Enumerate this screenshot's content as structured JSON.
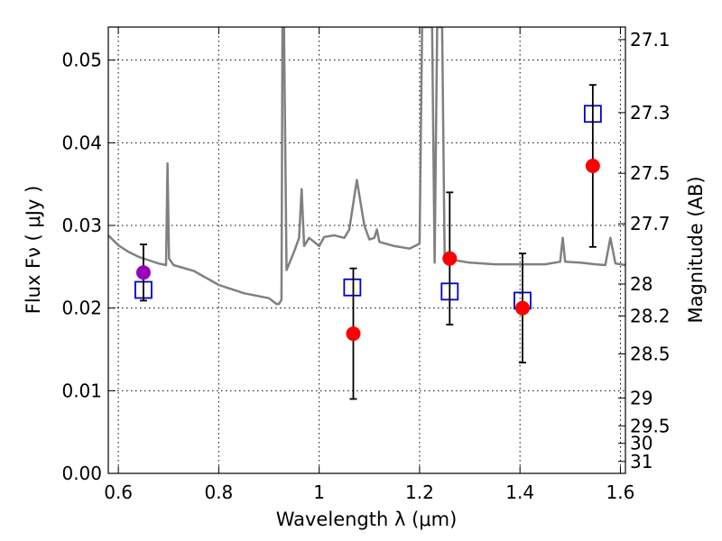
{
  "chart_data": {
    "type": "scatter",
    "xlabel": "Wavelength  λ (μm)",
    "ylabel": "Flux  Fν  ( μJy )",
    "ylabel_right": "Magnitude (AB)",
    "xlim": [
      0.58,
      1.61
    ],
    "ylim": [
      0.0,
      0.054
    ],
    "x_ticks": [
      0.6,
      0.8,
      1.0,
      1.2,
      1.4,
      1.6
    ],
    "x_tick_labels": [
      "0.6",
      "0.8",
      "1",
      "1.2",
      "1.4",
      "1.6"
    ],
    "y_ticks": [
      0.0,
      0.01,
      0.02,
      0.03,
      0.04,
      0.05
    ],
    "y_tick_labels": [
      "0.00",
      "0.01",
      "0.02",
      "0.03",
      "0.04",
      "0.05"
    ],
    "mag_ticks": [
      27.1,
      27.3,
      27.5,
      27.7,
      28,
      28.2,
      28.5,
      29,
      29.5,
      30,
      31
    ],
    "mag_tick_labels": [
      "27.1",
      "27.3",
      "27.5",
      "27.7",
      "28",
      "28.2",
      "28.5",
      "29",
      "29.5",
      "30",
      "31"
    ],
    "grid": true,
    "series": [
      {
        "marker": "line",
        "color": "#808080",
        "points": [
          [
            0.58,
            0.0288
          ],
          [
            0.6,
            0.0276
          ],
          [
            0.62,
            0.0268
          ],
          [
            0.64,
            0.0262
          ],
          [
            0.66,
            0.0258
          ],
          [
            0.68,
            0.0254
          ],
          [
            0.695,
            0.0252
          ],
          [
            0.698,
            0.0375
          ],
          [
            0.701,
            0.026
          ],
          [
            0.71,
            0.0252
          ],
          [
            0.75,
            0.0245
          ],
          [
            0.8,
            0.0228
          ],
          [
            0.85,
            0.0218
          ],
          [
            0.9,
            0.0212
          ],
          [
            0.915,
            0.0205
          ],
          [
            0.92,
            0.0205
          ],
          [
            0.925,
            0.021
          ],
          [
            0.927,
            0.054
          ],
          [
            0.93,
            0.054
          ],
          [
            0.935,
            0.0246
          ],
          [
            0.95,
            0.0268
          ],
          [
            0.96,
            0.0285
          ],
          [
            0.965,
            0.0344
          ],
          [
            0.97,
            0.0275
          ],
          [
            0.98,
            0.0285
          ],
          [
            0.99,
            0.028
          ],
          [
            1.0,
            0.0275
          ],
          [
            1.01,
            0.0286
          ],
          [
            1.03,
            0.0288
          ],
          [
            1.05,
            0.0285
          ],
          [
            1.06,
            0.0295
          ],
          [
            1.075,
            0.0355
          ],
          [
            1.09,
            0.03
          ],
          [
            1.1,
            0.0283
          ],
          [
            1.11,
            0.0285
          ],
          [
            1.115,
            0.0295
          ],
          [
            1.12,
            0.028
          ],
          [
            1.15,
            0.0275
          ],
          [
            1.18,
            0.0272
          ],
          [
            1.2,
            0.0278
          ],
          [
            1.205,
            0.054
          ],
          [
            1.225,
            0.054
          ],
          [
            1.23,
            0.0255
          ],
          [
            1.235,
            0.054
          ],
          [
            1.245,
            0.054
          ],
          [
            1.25,
            0.026
          ],
          [
            1.3,
            0.0255
          ],
          [
            1.35,
            0.0253
          ],
          [
            1.4,
            0.0253
          ],
          [
            1.45,
            0.0253
          ],
          [
            1.48,
            0.0256
          ],
          [
            1.485,
            0.0285
          ],
          [
            1.49,
            0.0256
          ],
          [
            1.52,
            0.0255
          ],
          [
            1.55,
            0.0253
          ],
          [
            1.57,
            0.0252
          ],
          [
            1.58,
            0.0285
          ],
          [
            1.59,
            0.0254
          ],
          [
            1.61,
            0.0252
          ]
        ]
      },
      {
        "marker": "open-square",
        "color": "#0000cc",
        "points": [
          [
            0.65,
            0.0222
          ],
          [
            1.066,
            0.0225
          ],
          [
            1.26,
            0.022
          ],
          [
            1.405,
            0.0209
          ],
          [
            1.545,
            0.0435
          ]
        ]
      },
      {
        "marker": "filled-circle",
        "color": "#ff0000",
        "points": [
          [
            1.068,
            0.0169,
            0.0079
          ],
          [
            1.26,
            0.026,
            0.008
          ],
          [
            1.405,
            0.02,
            0.0066
          ],
          [
            1.545,
            0.0372,
            0.0098
          ]
        ]
      },
      {
        "marker": "filled-circle",
        "color": "#9900bb",
        "points": [
          [
            0.65,
            0.0243,
            0.0034
          ]
        ]
      }
    ]
  }
}
